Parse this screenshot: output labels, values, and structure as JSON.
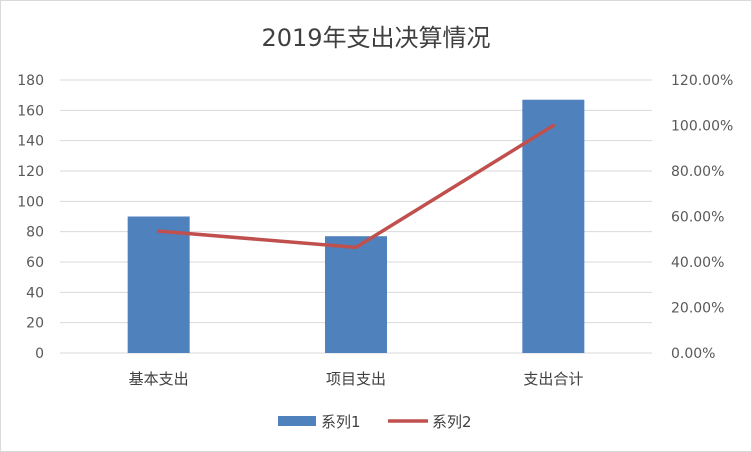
{
  "chart_data": {
    "type": "bar",
    "title": "2019年支出决算情况",
    "categories": [
      "基本支出",
      "项目支出",
      "支出合计"
    ],
    "series": [
      {
        "name": "系列1",
        "type": "bar",
        "axis": "left",
        "values": [
          90,
          77,
          167
        ],
        "color": "#4f81bd"
      },
      {
        "name": "系列2",
        "type": "line",
        "axis": "right",
        "values": [
          0.5359,
          0.4641,
          1.0
        ],
        "color": "#c0504d"
      }
    ],
    "y_left": {
      "min": 0,
      "max": 180,
      "step": 20,
      "ticks": [
        "0",
        "20",
        "40",
        "60",
        "80",
        "100",
        "120",
        "140",
        "160",
        "180"
      ]
    },
    "y_right": {
      "min": 0,
      "max": 1.2,
      "step": 0.2,
      "ticks": [
        "0.00%",
        "20.00%",
        "40.00%",
        "60.00%",
        "80.00%",
        "100.00%",
        "120.00%"
      ]
    },
    "grid": true,
    "legend": "bottom"
  }
}
